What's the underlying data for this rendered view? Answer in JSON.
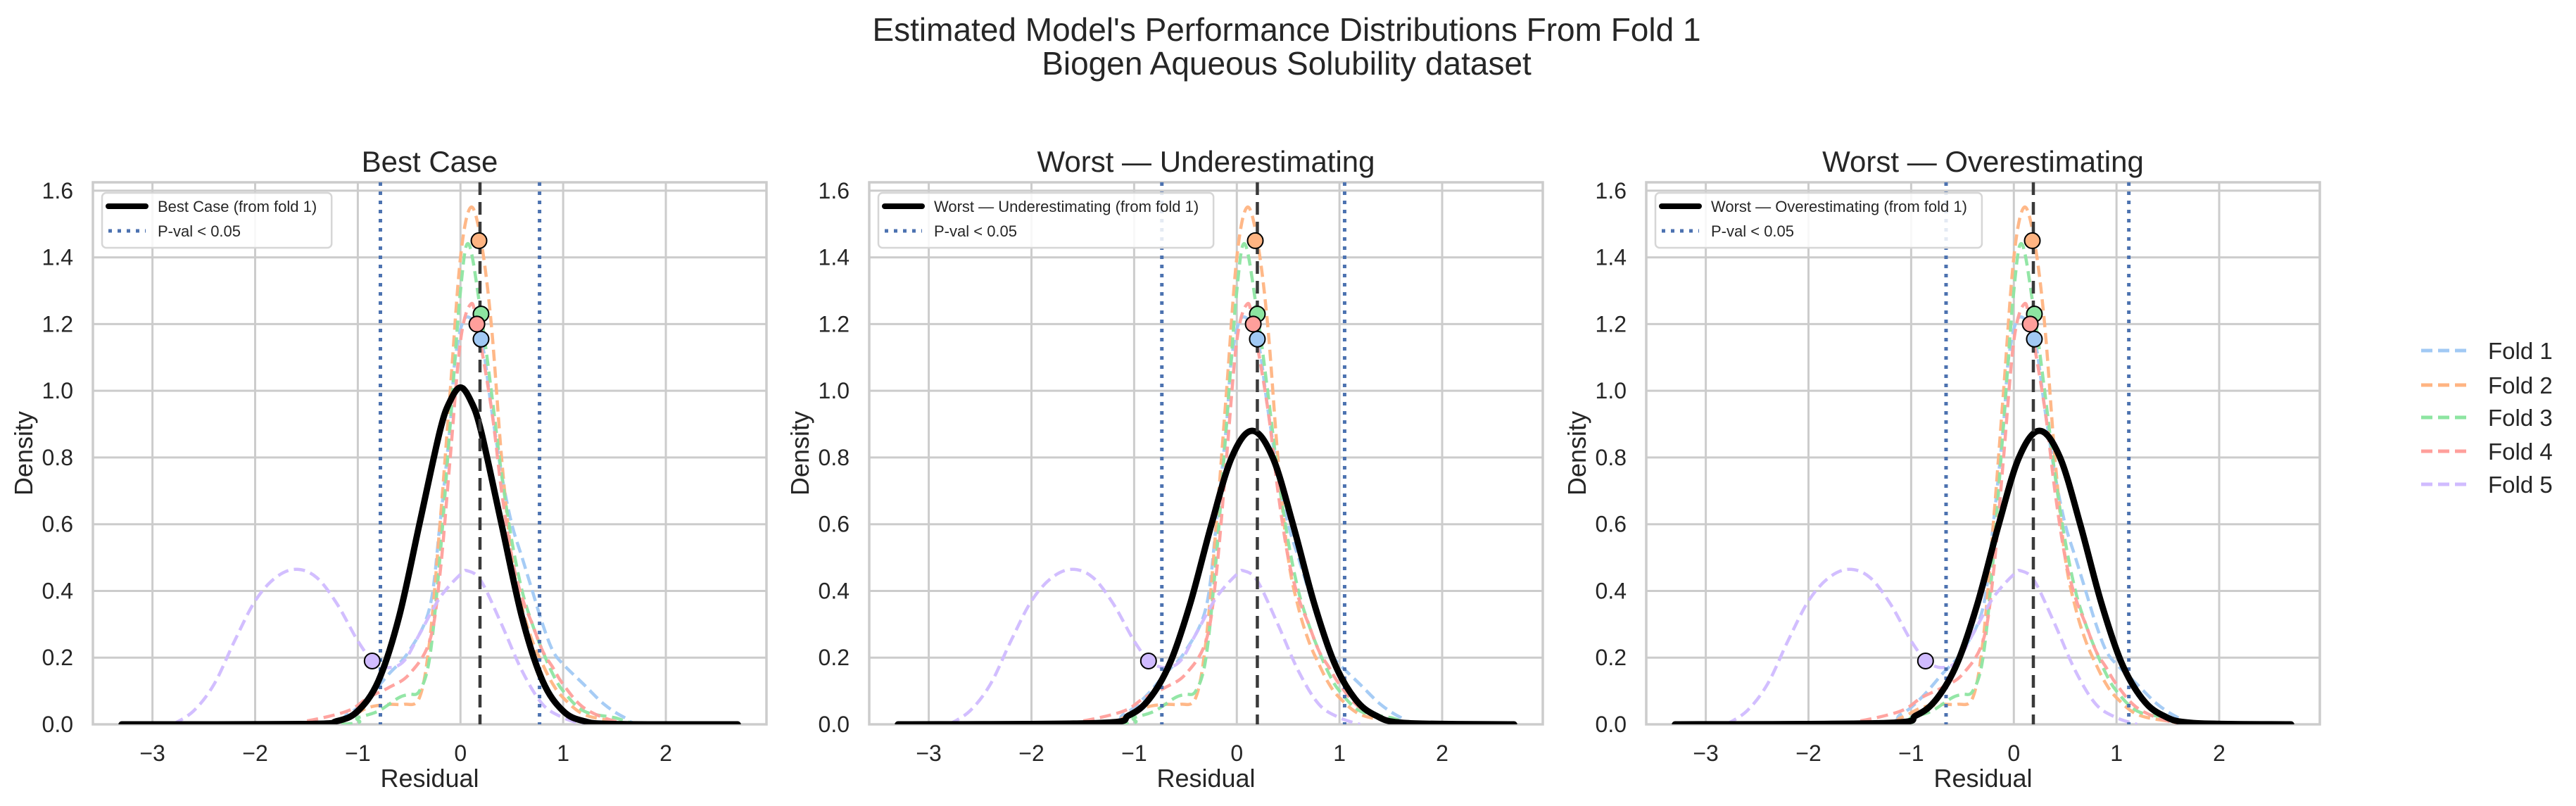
{
  "figure": {
    "suptitle_line1": "Estimated Model's Performance Distributions From Fold 1",
    "suptitle_line2": "Biogen Aqueous Solubility dataset"
  },
  "legend": {
    "entries": [
      {
        "label": "Fold 1",
        "color": "#a1c9f4"
      },
      {
        "label": "Fold 2",
        "color": "#ffb482"
      },
      {
        "label": "Fold 3",
        "color": "#8de5a1"
      },
      {
        "label": "Fold 4",
        "color": "#ff9f9b"
      },
      {
        "label": "Fold 5",
        "color": "#d0bbff"
      }
    ]
  },
  "colors": {
    "reference_curve": "#000000",
    "pval_line": "#4c72b0",
    "median_line": "#3a3a3a",
    "grid": "#cccccc",
    "text": "#262626"
  },
  "chart_data": {
    "type": "line",
    "xlabel": "Residual",
    "ylabel": "Density",
    "xlim": [
      -3.58,
      2.98
    ],
    "ylim": [
      0,
      1.625
    ],
    "xticks": [
      -3,
      -2,
      -1,
      0,
      1,
      2
    ],
    "xtick_labels": [
      "−3",
      "−2",
      "−1",
      "0",
      "1",
      "2"
    ],
    "yticks": [
      0,
      0.2,
      0.4,
      0.6,
      0.8,
      1.0,
      1.2,
      1.4,
      1.6
    ],
    "ytick_labels": [
      "0.0",
      "0.2",
      "0.4",
      "0.6",
      "0.8",
      "1.0",
      "1.2",
      "1.4",
      "1.6"
    ],
    "grid": true,
    "legend_placement": "top-left (per panel), right (shared folds legend)",
    "fold_series": [
      {
        "name": "Fold 1",
        "color": "#a1c9f4",
        "style": "dashed",
        "points": [
          [
            -3.3,
            0
          ],
          [
            -1.4,
            0.0
          ],
          [
            -1.1,
            0.03
          ],
          [
            -0.9,
            0.08
          ],
          [
            -0.7,
            0.15
          ],
          [
            -0.5,
            0.22
          ],
          [
            -0.3,
            0.35
          ],
          [
            -0.2,
            0.6
          ],
          [
            -0.1,
            0.9
          ],
          [
            -0.05,
            1.1
          ],
          [
            0.05,
            1.22
          ],
          [
            0.2,
            1.155
          ],
          [
            0.3,
            0.95
          ],
          [
            0.4,
            0.75
          ],
          [
            0.5,
            0.6
          ],
          [
            0.6,
            0.5
          ],
          [
            0.7,
            0.4
          ],
          [
            0.8,
            0.3
          ],
          [
            0.9,
            0.22
          ],
          [
            1.0,
            0.18
          ],
          [
            1.2,
            0.12
          ],
          [
            1.4,
            0.06
          ],
          [
            1.6,
            0.02
          ],
          [
            1.8,
            0.0
          ],
          [
            2.7,
            0
          ]
        ]
      },
      {
        "name": "Fold 2",
        "color": "#ffb482",
        "style": "dashed",
        "points": [
          [
            -3.3,
            0
          ],
          [
            -1.4,
            0.0
          ],
          [
            -1.1,
            0.02
          ],
          [
            -0.9,
            0.05
          ],
          [
            -0.7,
            0.06
          ],
          [
            -0.55,
            0.06
          ],
          [
            -0.4,
            0.08
          ],
          [
            -0.3,
            0.25
          ],
          [
            -0.2,
            0.6
          ],
          [
            -0.1,
            1.0
          ],
          [
            0.0,
            1.4
          ],
          [
            0.1,
            1.55
          ],
          [
            0.2,
            1.45
          ],
          [
            0.3,
            1.2
          ],
          [
            0.4,
            0.8
          ],
          [
            0.5,
            0.5
          ],
          [
            0.6,
            0.35
          ],
          [
            0.7,
            0.25
          ],
          [
            0.8,
            0.18
          ],
          [
            0.9,
            0.12
          ],
          [
            1.0,
            0.08
          ],
          [
            1.2,
            0.03
          ],
          [
            1.5,
            0.01
          ],
          [
            1.8,
            0.0
          ],
          [
            2.7,
            0
          ]
        ]
      },
      {
        "name": "Fold 3",
        "color": "#8de5a1",
        "style": "dashed",
        "points": [
          [
            -3.3,
            0
          ],
          [
            -1.2,
            0.0
          ],
          [
            -1.0,
            0.02
          ],
          [
            -0.8,
            0.04
          ],
          [
            -0.6,
            0.08
          ],
          [
            -0.5,
            0.09
          ],
          [
            -0.4,
            0.1
          ],
          [
            -0.3,
            0.2
          ],
          [
            -0.2,
            0.5
          ],
          [
            -0.1,
            0.9
          ],
          [
            0.0,
            1.3
          ],
          [
            0.08,
            1.44
          ],
          [
            0.2,
            1.23
          ],
          [
            0.3,
            1.0
          ],
          [
            0.4,
            0.75
          ],
          [
            0.5,
            0.55
          ],
          [
            0.6,
            0.4
          ],
          [
            0.7,
            0.3
          ],
          [
            0.8,
            0.22
          ],
          [
            0.9,
            0.15
          ],
          [
            1.0,
            0.1
          ],
          [
            1.2,
            0.04
          ],
          [
            1.5,
            0.02
          ],
          [
            1.8,
            0.0
          ],
          [
            2.7,
            0
          ]
        ]
      },
      {
        "name": "Fold 4",
        "color": "#ff9f9b",
        "style": "dashed",
        "points": [
          [
            -3.3,
            0
          ],
          [
            -1.8,
            0.0
          ],
          [
            -1.5,
            0.01
          ],
          [
            -1.1,
            0.04
          ],
          [
            -0.9,
            0.08
          ],
          [
            -0.7,
            0.11
          ],
          [
            -0.5,
            0.15
          ],
          [
            -0.3,
            0.25
          ],
          [
            -0.2,
            0.45
          ],
          [
            -0.1,
            0.8
          ],
          [
            0.0,
            1.15
          ],
          [
            0.1,
            1.26
          ],
          [
            0.16,
            1.2
          ],
          [
            0.3,
            0.95
          ],
          [
            0.4,
            0.7
          ],
          [
            0.5,
            0.5
          ],
          [
            0.6,
            0.38
          ],
          [
            0.7,
            0.3
          ],
          [
            0.8,
            0.22
          ],
          [
            0.9,
            0.17
          ],
          [
            1.0,
            0.12
          ],
          [
            1.2,
            0.05
          ],
          [
            1.5,
            0.01
          ],
          [
            1.8,
            0.0
          ],
          [
            2.7,
            0
          ]
        ]
      },
      {
        "name": "Fold 5",
        "color": "#d0bbff",
        "style": "dashed",
        "points": [
          [
            -2.8,
            0
          ],
          [
            -2.6,
            0.04
          ],
          [
            -2.4,
            0.12
          ],
          [
            -2.2,
            0.25
          ],
          [
            -2.0,
            0.37
          ],
          [
            -1.8,
            0.44
          ],
          [
            -1.6,
            0.465
          ],
          [
            -1.4,
            0.44
          ],
          [
            -1.2,
            0.36
          ],
          [
            -1.0,
            0.25
          ],
          [
            -0.85,
            0.19
          ],
          [
            -0.7,
            0.17
          ],
          [
            -0.55,
            0.19
          ],
          [
            -0.4,
            0.27
          ],
          [
            -0.2,
            0.38
          ],
          [
            0.0,
            0.45
          ],
          [
            0.07,
            0.46
          ],
          [
            0.2,
            0.43
          ],
          [
            0.4,
            0.3
          ],
          [
            0.6,
            0.16
          ],
          [
            0.8,
            0.06
          ],
          [
            1.0,
            0.02
          ],
          [
            1.2,
            0.0
          ]
        ]
      }
    ],
    "fold_markers": [
      {
        "fold": "Fold 1",
        "color": "#a1c9f4",
        "x": 0.2,
        "y": 1.155
      },
      {
        "fold": "Fold 2",
        "color": "#ffb482",
        "x": 0.18,
        "y": 1.45
      },
      {
        "fold": "Fold 3",
        "color": "#8de5a1",
        "x": 0.2,
        "y": 1.23
      },
      {
        "fold": "Fold 4",
        "color": "#ff9f9b",
        "x": 0.16,
        "y": 1.2
      },
      {
        "fold": "Fold 5",
        "color": "#d0bbff",
        "x": -0.86,
        "y": 0.19
      }
    ],
    "panels": [
      {
        "title": "Best Case",
        "reference_label": "Best Case (from fold 1)",
        "pval_label": "P-val < 0.05",
        "pval_lines": [
          -0.78,
          0.77
        ],
        "median_line": 0.19,
        "reference_curve": [
          [
            -3.3,
            0
          ],
          [
            -1.5,
            0.001
          ],
          [
            -1.2,
            0.01
          ],
          [
            -1.0,
            0.04
          ],
          [
            -0.8,
            0.13
          ],
          [
            -0.6,
            0.32
          ],
          [
            -0.4,
            0.6
          ],
          [
            -0.2,
            0.88
          ],
          [
            -0.1,
            0.97
          ],
          [
            0,
            1.01
          ],
          [
            0.1,
            0.97
          ],
          [
            0.2,
            0.88
          ],
          [
            0.4,
            0.6
          ],
          [
            0.6,
            0.32
          ],
          [
            0.8,
            0.13
          ],
          [
            1.0,
            0.04
          ],
          [
            1.2,
            0.01
          ],
          [
            1.5,
            0.001
          ],
          [
            2.7,
            0
          ]
        ]
      },
      {
        "title": "Worst — Underestimating",
        "reference_label": "Worst — Underestimating (from fold 1)",
        "pval_label": "P-val < 0.05",
        "pval_lines": [
          -0.73,
          1.05
        ],
        "median_line": 0.2,
        "reference_curve": [
          [
            -3.3,
            0
          ],
          [
            -1.35,
            0.004
          ],
          [
            -1.05,
            0.027
          ],
          [
            -0.85,
            0.077
          ],
          [
            -0.65,
            0.184
          ],
          [
            -0.45,
            0.366
          ],
          [
            -0.25,
            0.596
          ],
          [
            -0.05,
            0.8
          ],
          [
            0.15,
            0.88
          ],
          [
            0.35,
            0.8
          ],
          [
            0.55,
            0.596
          ],
          [
            0.75,
            0.366
          ],
          [
            0.95,
            0.184
          ],
          [
            1.15,
            0.077
          ],
          [
            1.35,
            0.027
          ],
          [
            1.65,
            0.004
          ],
          [
            2.7,
            0
          ]
        ]
      },
      {
        "title": "Worst — Overestimating",
        "reference_label": "Worst — Overestimating (from fold 1)",
        "pval_label": "P-val < 0.05",
        "pval_lines": [
          -0.66,
          1.12
        ],
        "median_line": 0.19,
        "reference_curve": [
          [
            -3.3,
            0
          ],
          [
            -1.25,
            0.004
          ],
          [
            -0.95,
            0.027
          ],
          [
            -0.75,
            0.077
          ],
          [
            -0.55,
            0.184
          ],
          [
            -0.35,
            0.366
          ],
          [
            -0.15,
            0.596
          ],
          [
            0.05,
            0.8
          ],
          [
            0.25,
            0.88
          ],
          [
            0.45,
            0.8
          ],
          [
            0.65,
            0.596
          ],
          [
            0.85,
            0.366
          ],
          [
            1.05,
            0.184
          ],
          [
            1.25,
            0.077
          ],
          [
            1.45,
            0.027
          ],
          [
            1.75,
            0.004
          ],
          [
            2.7,
            0
          ]
        ]
      }
    ]
  }
}
